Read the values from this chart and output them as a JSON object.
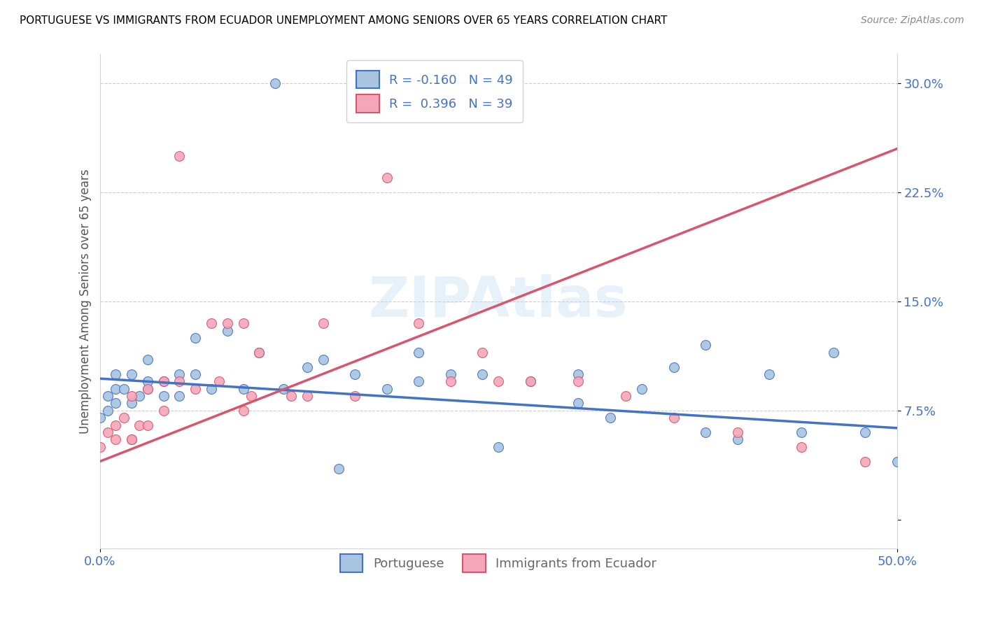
{
  "title": "PORTUGUESE VS IMMIGRANTS FROM ECUADOR UNEMPLOYMENT AMONG SENIORS OVER 65 YEARS CORRELATION CHART",
  "source": "Source: ZipAtlas.com",
  "ylabel": "Unemployment Among Seniors over 65 years",
  "xlim": [
    0.0,
    0.5
  ],
  "ylim": [
    -0.02,
    0.32
  ],
  "yticks": [
    0.0,
    0.075,
    0.15,
    0.225,
    0.3
  ],
  "ytick_labels": [
    "",
    "7.5%",
    "15.0%",
    "22.5%",
    "30.0%"
  ],
  "xticks": [
    0.0,
    0.5
  ],
  "xtick_labels": [
    "0.0%",
    "50.0%"
  ],
  "legend_labels": [
    "Portuguese",
    "Immigrants from Ecuador"
  ],
  "blue_color": "#a8c4e0",
  "pink_color": "#f4a7b9",
  "blue_line_color": "#4472c4",
  "pink_line_color": "#d9556b",
  "R_blue": -0.16,
  "N_blue": 49,
  "R_pink": 0.396,
  "N_pink": 39,
  "watermark": "ZIPAtlas",
  "blue_scatter_x": [
    0.0,
    0.005,
    0.005,
    0.01,
    0.01,
    0.01,
    0.015,
    0.02,
    0.02,
    0.025,
    0.03,
    0.03,
    0.03,
    0.04,
    0.04,
    0.05,
    0.05,
    0.06,
    0.06,
    0.07,
    0.08,
    0.09,
    0.1,
    0.11,
    0.115,
    0.13,
    0.14,
    0.16,
    0.18,
    0.2,
    0.22,
    0.24,
    0.27,
    0.3,
    0.32,
    0.34,
    0.36,
    0.38,
    0.4,
    0.42,
    0.44,
    0.46,
    0.48,
    0.5,
    0.25,
    0.38,
    0.2,
    0.3,
    0.15
  ],
  "blue_scatter_y": [
    0.07,
    0.075,
    0.085,
    0.08,
    0.09,
    0.1,
    0.09,
    0.08,
    0.1,
    0.085,
    0.09,
    0.095,
    0.11,
    0.085,
    0.095,
    0.085,
    0.1,
    0.1,
    0.125,
    0.09,
    0.13,
    0.09,
    0.115,
    0.3,
    0.09,
    0.105,
    0.11,
    0.1,
    0.09,
    0.115,
    0.1,
    0.1,
    0.095,
    0.1,
    0.07,
    0.09,
    0.105,
    0.06,
    0.055,
    0.1,
    0.06,
    0.115,
    0.06,
    0.04,
    0.05,
    0.12,
    0.095,
    0.08,
    0.035
  ],
  "pink_scatter_x": [
    0.0,
    0.005,
    0.01,
    0.01,
    0.015,
    0.02,
    0.02,
    0.02,
    0.025,
    0.03,
    0.03,
    0.04,
    0.04,
    0.05,
    0.05,
    0.06,
    0.07,
    0.075,
    0.08,
    0.09,
    0.095,
    0.1,
    0.12,
    0.13,
    0.14,
    0.16,
    0.18,
    0.2,
    0.22,
    0.24,
    0.27,
    0.3,
    0.33,
    0.36,
    0.4,
    0.44,
    0.48,
    0.25,
    0.09
  ],
  "pink_scatter_y": [
    0.05,
    0.06,
    0.055,
    0.065,
    0.07,
    0.055,
    0.085,
    0.055,
    0.065,
    0.065,
    0.09,
    0.075,
    0.095,
    0.095,
    0.25,
    0.09,
    0.135,
    0.095,
    0.135,
    0.135,
    0.085,
    0.115,
    0.085,
    0.085,
    0.135,
    0.085,
    0.235,
    0.135,
    0.095,
    0.115,
    0.095,
    0.095,
    0.085,
    0.07,
    0.06,
    0.05,
    0.04,
    0.095,
    0.075
  ],
  "blue_trend_x0": 0.0,
  "blue_trend_y0": 0.097,
  "blue_trend_x1": 0.5,
  "blue_trend_y1": 0.063,
  "pink_trend_x0": 0.0,
  "pink_trend_y0": 0.04,
  "pink_trend_x1": 0.5,
  "pink_trend_y1": 0.255
}
